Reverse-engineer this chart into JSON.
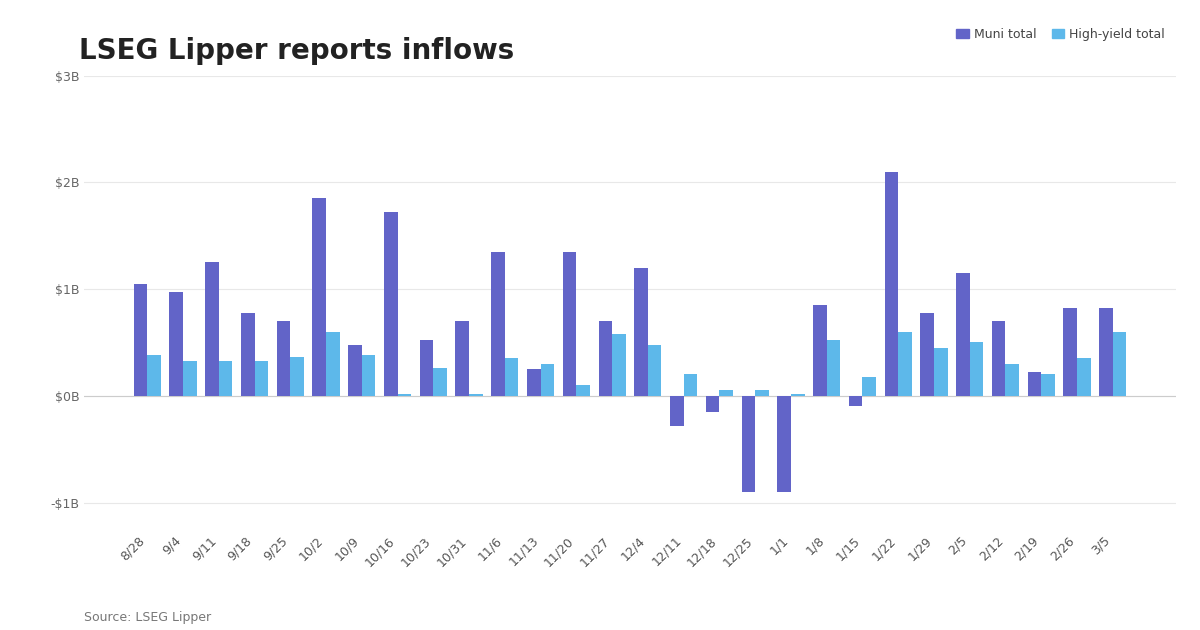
{
  "title": "LSEG Lipper reports inflows",
  "source": "Source: LSEG Lipper",
  "categories": [
    "8/28",
    "9/4",
    "9/11",
    "9/18",
    "9/25",
    "10/2",
    "10/9",
    "10/16",
    "10/23",
    "10/31",
    "11/6",
    "11/13",
    "11/20",
    "11/27",
    "12/4",
    "12/11",
    "12/18",
    "12/25",
    "1/1",
    "1/8",
    "1/15",
    "1/22",
    "1/29",
    "2/5",
    "2/12",
    "2/19",
    "2/26",
    "3/5"
  ],
  "muni_total": [
    1.05,
    0.97,
    1.25,
    0.78,
    0.7,
    1.85,
    0.48,
    1.72,
    0.52,
    0.7,
    1.35,
    0.25,
    1.35,
    0.7,
    1.2,
    -0.28,
    -0.15,
    -0.9,
    -0.9,
    0.85,
    -0.1,
    2.1,
    0.78,
    1.15,
    0.7,
    0.22,
    0.82,
    0.82
  ],
  "hy_total": [
    0.38,
    0.33,
    0.33,
    0.33,
    0.36,
    0.6,
    0.38,
    0.02,
    0.26,
    0.02,
    0.35,
    0.3,
    0.1,
    0.58,
    0.48,
    0.2,
    0.05,
    0.05,
    0.02,
    0.52,
    0.18,
    0.6,
    0.45,
    0.5,
    0.3,
    0.2,
    0.35,
    0.6
  ],
  "muni_color": "#6264c8",
  "hy_color": "#5db8ea",
  "ylim": [
    -1.25,
    3.0
  ],
  "yticks": [
    -1.0,
    0.0,
    1.0,
    2.0,
    3.0
  ],
  "ytick_labels": [
    "-$1B",
    "$0B",
    "$1B",
    "$2B",
    "$3B"
  ],
  "background_color": "#ffffff",
  "grid_color": "#e8e8e8",
  "title_fontsize": 20,
  "label_fontsize": 9,
  "legend_labels": [
    "Muni total",
    "High-yield total"
  ],
  "bar_width": 0.38
}
